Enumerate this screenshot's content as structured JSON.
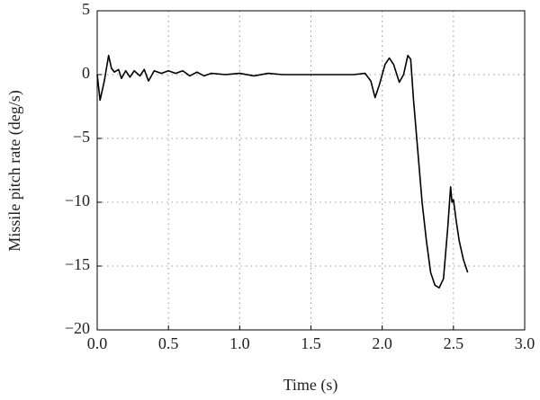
{
  "chart_data": {
    "type": "line",
    "x_label": "Time (s)",
    "y_label": "Missile pitch rate (deg/s)",
    "xlim": [
      0,
      3
    ],
    "ylim": [
      -20,
      5
    ],
    "xticks": [
      {
        "value": 0,
        "label": "0.0"
      },
      0.5,
      {
        "value": 1,
        "label": "1.0"
      },
      1.5,
      {
        "value": 2,
        "label": "2.0"
      },
      2.5,
      {
        "value": 3,
        "label": "3.0"
      }
    ],
    "yticks": [
      5,
      0,
      {
        "value": -5,
        "label": "−5"
      },
      {
        "value": -10,
        "label": "−10"
      },
      {
        "value": -15,
        "label": "−15"
      },
      {
        "value": -20,
        "label": "−20"
      }
    ],
    "grid": true,
    "series": [
      {
        "color": "#000000",
        "x": [
          0,
          0.02,
          0.05,
          0.08,
          0.1,
          0.12,
          0.15,
          0.17,
          0.2,
          0.23,
          0.26,
          0.3,
          0.33,
          0.36,
          0.4,
          0.45,
          0.5,
          0.55,
          0.6,
          0.65,
          0.7,
          0.75,
          0.8,
          0.9,
          1.0,
          1.1,
          1.2,
          1.3,
          1.4,
          1.5,
          1.6,
          1.7,
          1.8,
          1.88,
          1.92,
          1.95,
          1.98,
          2.02,
          2.05,
          2.08,
          2.12,
          2.15,
          2.18,
          2.2,
          2.22,
          2.25,
          2.28,
          2.31,
          2.34,
          2.37,
          2.4,
          2.43,
          2.46,
          2.48,
          2.49,
          2.5,
          2.52,
          2.54,
          2.57,
          2.6
        ],
        "values": [
          0,
          -2,
          -0.5,
          1.5,
          0.5,
          0.2,
          0.4,
          -0.3,
          0.3,
          -0.2,
          0.3,
          -0.1,
          0.4,
          -0.5,
          0.3,
          0.1,
          0.3,
          0.1,
          0.3,
          -0.1,
          0.2,
          -0.1,
          0.1,
          0,
          0.1,
          -0.1,
          0.1,
          0,
          0,
          0,
          0,
          0,
          0,
          0.1,
          -0.5,
          -1.8,
          -0.8,
          0.8,
          1.3,
          0.8,
          -0.6,
          0,
          1.5,
          1.2,
          -2,
          -6,
          -10,
          -13,
          -15.5,
          -16.5,
          -16.7,
          -16,
          -12,
          -8.8,
          -10,
          -9.8,
          -11.5,
          -13,
          -14.5,
          -15.5
        ]
      }
    ]
  }
}
